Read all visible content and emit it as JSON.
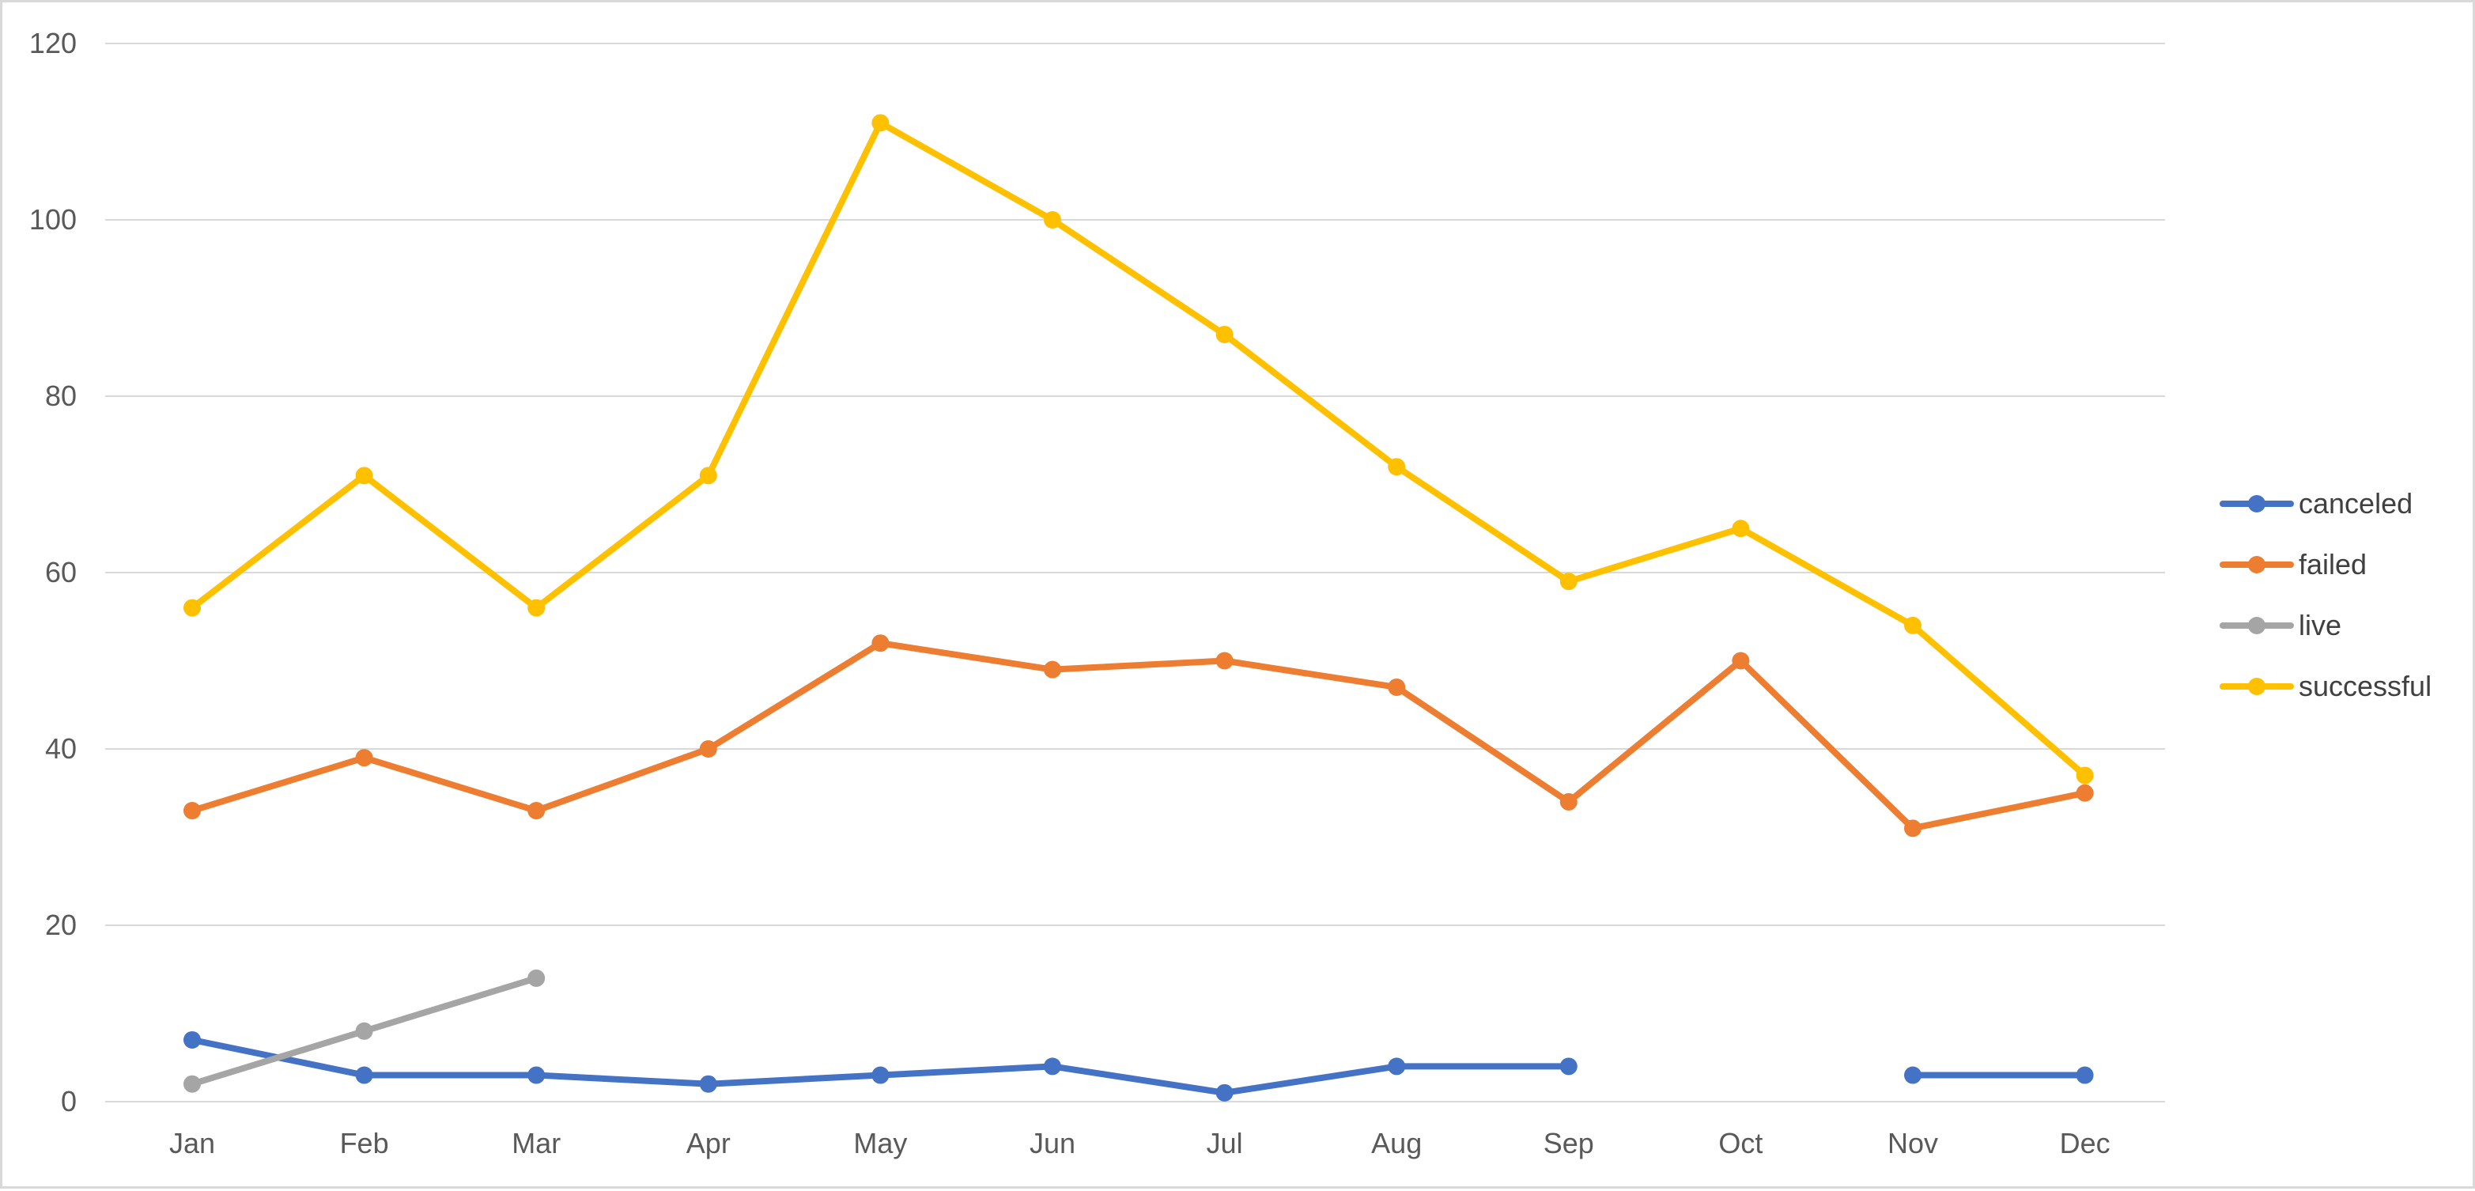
{
  "chart_data": {
    "type": "line",
    "title": "",
    "xlabel": "",
    "ylabel": "",
    "categories": [
      "Jan",
      "Feb",
      "Mar",
      "Apr",
      "May",
      "Jun",
      "Jul",
      "Aug",
      "Sep",
      "Oct",
      "Nov",
      "Dec"
    ],
    "ylim": [
      0,
      120
    ],
    "yticks": [
      "0",
      "20",
      "40",
      "60",
      "80",
      "100",
      "120"
    ],
    "grid": true,
    "legend_position": "right",
    "series": [
      {
        "name": "canceled",
        "color": "#4472c4",
        "values": [
          7,
          3,
          3,
          2,
          3,
          4,
          1,
          4,
          4,
          null,
          3,
          3
        ]
      },
      {
        "name": "failed",
        "color": "#ed7d31",
        "values": [
          33,
          39,
          33,
          40,
          52,
          49,
          50,
          47,
          34,
          50,
          31,
          35
        ]
      },
      {
        "name": "live",
        "color": "#a5a5a5",
        "values": [
          2,
          8,
          14,
          null,
          null,
          null,
          null,
          null,
          null,
          null,
          null,
          null
        ]
      },
      {
        "name": "successful",
        "color": "#ffc000",
        "values": [
          56,
          71,
          56,
          71,
          111,
          100,
          87,
          72,
          59,
          65,
          54,
          37
        ]
      }
    ]
  }
}
